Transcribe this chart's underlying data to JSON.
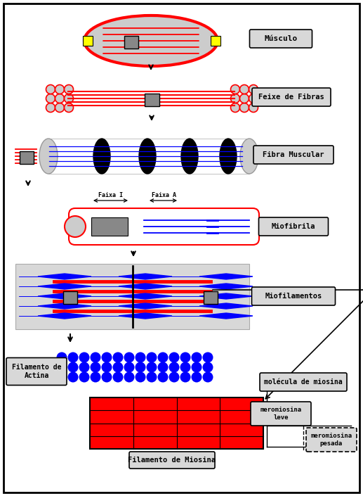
{
  "bg": "#ffffff",
  "red": "#ff0000",
  "blue": "#0000ff",
  "black": "#000000",
  "yellow": "#ffff00",
  "gray_light": "#cccccc",
  "gray_med": "#888888",
  "panel_bg": "#d8d8d8",
  "label_bg": "#d8d8d8",
  "labels": {
    "musculo": "Músculo",
    "feixe": "Feixe de Fibras",
    "fibra": "Fibra Muscular",
    "miofibrila": "Miofibrila",
    "miofilamentos": "Miofilamentos",
    "actina": "Filamento de\nActina",
    "miosina": "Filamento de Miosina",
    "molecula": "molécula de miosina",
    "mere_leve": "meromiosina\nleve",
    "mere_pesada": "meromiosina\npesada",
    "faixa_i": "Faixa I",
    "faixa_a": "Faixa A"
  }
}
